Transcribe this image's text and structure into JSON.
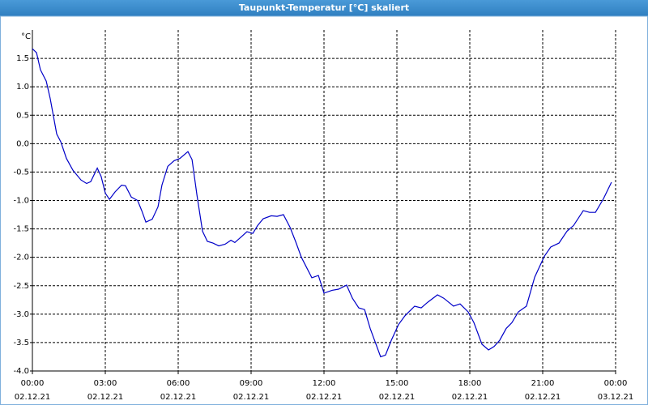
{
  "chart_data": {
    "type": "line",
    "title": "Taupunkt-Temperatur [°C] skaliert",
    "y_unit": "°C",
    "color": "#0000c8",
    "grid": true,
    "xlim": [
      0,
      24
    ],
    "ylim": [
      -4.0,
      2.0
    ],
    "xticks": [
      {
        "value": 0,
        "label": "00:00"
      },
      {
        "value": 3,
        "label": "03:00"
      },
      {
        "value": 6,
        "label": "06:00"
      },
      {
        "value": 9,
        "label": "09:00"
      },
      {
        "value": 12,
        "label": "12:00"
      },
      {
        "value": 15,
        "label": "15:00"
      },
      {
        "value": 18,
        "label": "18:00"
      },
      {
        "value": 21,
        "label": "21:00"
      },
      {
        "value": 24,
        "label": "00:00"
      }
    ],
    "xtick_dates": [
      "02.12.21",
      "02.12.21",
      "02.12.21",
      "02.12.21",
      "02.12.21",
      "02.12.21",
      "02.12.21",
      "02.12.21",
      "03.12.21"
    ],
    "yticks": [
      {
        "value": -4.0,
        "label": "-4.0"
      },
      -3.5,
      {
        "value": -3.0,
        "label": "-3.0"
      },
      -2.5,
      {
        "value": -2.0,
        "label": "-2.0"
      },
      -1.5,
      {
        "value": -1.0,
        "label": "-1.0"
      },
      -0.5,
      {
        "value": 0.0,
        "label": "0.0"
      },
      0.5,
      {
        "value": 1.0,
        "label": "1.0"
      },
      1.5
    ],
    "x": [
      0,
      0.17,
      0.33,
      0.57,
      0.73,
      1.0,
      1.17,
      1.4,
      1.67,
      2.0,
      2.23,
      2.4,
      2.67,
      2.83,
      3.0,
      3.17,
      3.4,
      3.67,
      3.83,
      4.07,
      4.33,
      4.5,
      4.67,
      4.93,
      5.17,
      5.33,
      5.57,
      5.83,
      6.07,
      6.4,
      6.57,
      6.77,
      7.0,
      7.2,
      7.43,
      7.67,
      7.93,
      8.17,
      8.33,
      8.57,
      8.83,
      9.07,
      9.27,
      9.5,
      9.83,
      10.07,
      10.33,
      10.6,
      10.83,
      11.07,
      11.5,
      11.77,
      12.0,
      12.33,
      12.6,
      12.93,
      13.17,
      13.43,
      13.67,
      13.9,
      14.33,
      14.53,
      14.77,
      15.07,
      15.33,
      15.73,
      16.0,
      16.27,
      16.67,
      16.93,
      17.33,
      17.6,
      17.93,
      18.17,
      18.5,
      18.77,
      19.0,
      19.23,
      19.5,
      19.73,
      20.0,
      20.33,
      20.67,
      21.07,
      21.33,
      21.67,
      22.0,
      22.27,
      22.67,
      22.93,
      23.17,
      23.5,
      23.83
    ],
    "values": [
      1.67,
      1.6,
      1.3,
      1.1,
      0.8,
      0.17,
      0.03,
      -0.26,
      -0.47,
      -0.64,
      -0.7,
      -0.67,
      -0.43,
      -0.58,
      -0.87,
      -0.98,
      -0.85,
      -0.73,
      -0.74,
      -0.94,
      -1.0,
      -1.18,
      -1.38,
      -1.33,
      -1.11,
      -0.73,
      -0.4,
      -0.3,
      -0.26,
      -0.14,
      -0.28,
      -0.9,
      -1.54,
      -1.72,
      -1.75,
      -1.8,
      -1.77,
      -1.7,
      -1.74,
      -1.65,
      -1.55,
      -1.58,
      -1.44,
      -1.32,
      -1.27,
      -1.28,
      -1.25,
      -1.47,
      -1.72,
      -2.0,
      -2.36,
      -2.32,
      -2.63,
      -2.58,
      -2.56,
      -2.49,
      -2.72,
      -2.89,
      -2.92,
      -3.25,
      -3.75,
      -3.72,
      -3.46,
      -3.18,
      -3.03,
      -2.86,
      -2.89,
      -2.79,
      -2.66,
      -2.72,
      -2.86,
      -2.82,
      -2.96,
      -3.15,
      -3.53,
      -3.63,
      -3.57,
      -3.46,
      -3.25,
      -3.15,
      -2.96,
      -2.86,
      -2.35,
      -1.98,
      -1.82,
      -1.75,
      -1.54,
      -1.44,
      -1.18,
      -1.21,
      -1.21,
      -0.97,
      -0.68
    ]
  }
}
